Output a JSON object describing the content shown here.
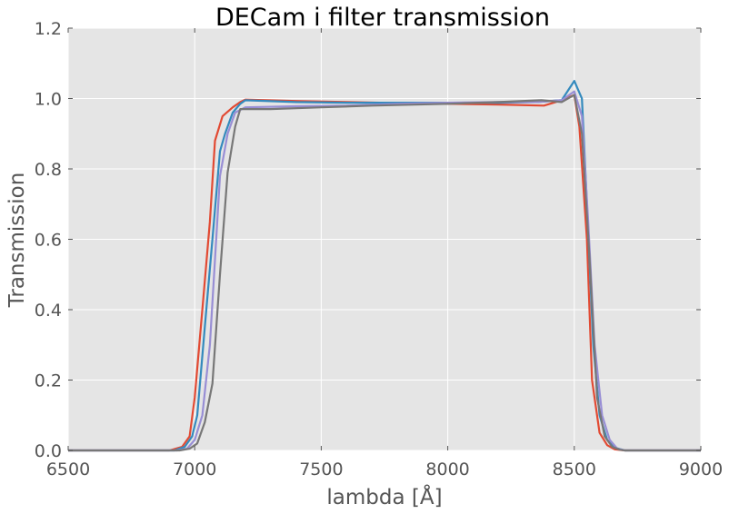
{
  "chart_data": {
    "type": "line",
    "title": "DECam i filter transmission",
    "xlabel": "lambda [Å]",
    "ylabel": "Transmission",
    "xlim": [
      6500,
      9000
    ],
    "ylim": [
      0.0,
      1.2
    ],
    "xticks": [
      6500,
      7000,
      7500,
      8000,
      8500,
      9000
    ],
    "yticks": [
      0.0,
      0.2,
      0.4,
      0.6,
      0.8,
      1.0,
      1.2
    ],
    "xtick_labels": [
      "6500",
      "7000",
      "7500",
      "8000",
      "8500",
      "9000"
    ],
    "ytick_labels": [
      "0.0",
      "0.2",
      "0.4",
      "0.6",
      "0.8",
      "1.0",
      "1.2"
    ],
    "grid": true,
    "background": "#e5e5e5",
    "series": [
      {
        "color": "#e24a33",
        "points": [
          [
            6500,
            0.0
          ],
          [
            6900,
            0.0
          ],
          [
            6950,
            0.01
          ],
          [
            6980,
            0.04
          ],
          [
            7000,
            0.15
          ],
          [
            7030,
            0.4
          ],
          [
            7060,
            0.65
          ],
          [
            7080,
            0.88
          ],
          [
            7110,
            0.95
          ],
          [
            7150,
            0.975
          ],
          [
            7180,
            0.99
          ],
          [
            7200,
            0.997
          ],
          [
            7400,
            0.993
          ],
          [
            7600,
            0.99
          ],
          [
            7800,
            0.987
          ],
          [
            8000,
            0.985
          ],
          [
            8200,
            0.983
          ],
          [
            8380,
            0.98
          ],
          [
            8450,
            0.995
          ],
          [
            8500,
            1.01
          ],
          [
            8520,
            0.92
          ],
          [
            8550,
            0.6
          ],
          [
            8570,
            0.2
          ],
          [
            8600,
            0.05
          ],
          [
            8630,
            0.015
          ],
          [
            8660,
            0.003
          ],
          [
            8700,
            0.0
          ],
          [
            9000,
            0.0
          ]
        ]
      },
      {
        "color": "#348abd",
        "points": [
          [
            6500,
            0.0
          ],
          [
            6920,
            0.0
          ],
          [
            6960,
            0.01
          ],
          [
            6990,
            0.04
          ],
          [
            7010,
            0.1
          ],
          [
            7040,
            0.35
          ],
          [
            7070,
            0.6
          ],
          [
            7100,
            0.85
          ],
          [
            7120,
            0.9
          ],
          [
            7150,
            0.96
          ],
          [
            7180,
            0.985
          ],
          [
            7200,
            0.995
          ],
          [
            7400,
            0.99
          ],
          [
            7600,
            0.988
          ],
          [
            7800,
            0.988
          ],
          [
            8000,
            0.988
          ],
          [
            8200,
            0.988
          ],
          [
            8350,
            0.99
          ],
          [
            8450,
            0.995
          ],
          [
            8500,
            1.05
          ],
          [
            8530,
            1.0
          ],
          [
            8550,
            0.7
          ],
          [
            8575,
            0.3
          ],
          [
            8600,
            0.1
          ],
          [
            8630,
            0.03
          ],
          [
            8660,
            0.008
          ],
          [
            8700,
            0.0
          ],
          [
            9000,
            0.0
          ]
        ]
      },
      {
        "color": "#988ed5",
        "points": [
          [
            6500,
            0.0
          ],
          [
            6930,
            0.0
          ],
          [
            6970,
            0.005
          ],
          [
            7000,
            0.03
          ],
          [
            7030,
            0.1
          ],
          [
            7060,
            0.3
          ],
          [
            7100,
            0.78
          ],
          [
            7130,
            0.9
          ],
          [
            7160,
            0.96
          ],
          [
            7200,
            0.975
          ],
          [
            7400,
            0.978
          ],
          [
            7600,
            0.98
          ],
          [
            7800,
            0.985
          ],
          [
            8000,
            0.988
          ],
          [
            8200,
            0.99
          ],
          [
            8350,
            0.99
          ],
          [
            8450,
            0.995
          ],
          [
            8500,
            1.02
          ],
          [
            8530,
            0.95
          ],
          [
            8555,
            0.65
          ],
          [
            8580,
            0.3
          ],
          [
            8610,
            0.1
          ],
          [
            8640,
            0.03
          ],
          [
            8670,
            0.005
          ],
          [
            8700,
            0.0
          ],
          [
            9000,
            0.0
          ]
        ]
      },
      {
        "color": "#777777",
        "points": [
          [
            6500,
            0.0
          ],
          [
            6940,
            0.0
          ],
          [
            6980,
            0.005
          ],
          [
            7010,
            0.02
          ],
          [
            7040,
            0.08
          ],
          [
            7070,
            0.19
          ],
          [
            7100,
            0.5
          ],
          [
            7130,
            0.79
          ],
          [
            7160,
            0.92
          ],
          [
            7180,
            0.97
          ],
          [
            7300,
            0.97
          ],
          [
            7500,
            0.975
          ],
          [
            7700,
            0.98
          ],
          [
            8000,
            0.985
          ],
          [
            8200,
            0.99
          ],
          [
            8370,
            0.995
          ],
          [
            8450,
            0.99
          ],
          [
            8500,
            1.01
          ],
          [
            8530,
            0.9
          ],
          [
            8560,
            0.55
          ],
          [
            8590,
            0.15
          ],
          [
            8620,
            0.04
          ],
          [
            8650,
            0.01
          ],
          [
            8680,
            0.002
          ],
          [
            8700,
            0.0
          ],
          [
            9000,
            0.0
          ]
        ]
      }
    ]
  }
}
